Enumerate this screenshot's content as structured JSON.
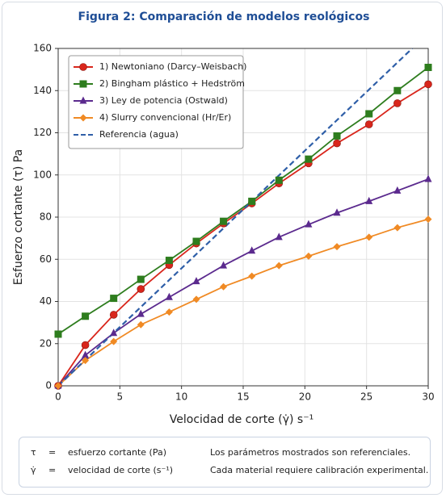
{
  "chart_data": {
    "type": "line",
    "title": "Figura 2: Comparación de modelos reológicos",
    "x_label": "Velocidad de corte (γ̇) s⁻¹",
    "y_label": "Esfuerzo cortante (τ) Pa",
    "x": [
      0,
      2.2,
      4.5,
      6.7,
      9.0,
      11.2,
      13.4,
      15.7,
      17.9,
      20.3,
      22.6,
      25.2,
      27.5,
      30.0
    ],
    "series": [
      {
        "name": "1) Newtoniano (Darcy–Weisbach)",
        "color": "#d9261c",
        "marker": "circle",
        "values": [
          0,
          19.3,
          33.7,
          45.9,
          57.3,
          67.5,
          77,
          86.5,
          96,
          105.5,
          115,
          124,
          134,
          143
        ]
      },
      {
        "name": "2) Bingham plástico + Hedström",
        "color": "#2e7d1e",
        "marker": "square",
        "values": [
          24.5,
          33,
          41.5,
          50.5,
          59.5,
          68.5,
          78,
          87.5,
          97.5,
          107.5,
          118.5,
          129,
          140,
          151
        ]
      },
      {
        "name": "3) Ley de potencia (Ostwald)",
        "color": "#5b2a8e",
        "marker": "triangle",
        "values": [
          0,
          14.5,
          25,
          34,
          42,
          49.5,
          57,
          64,
          70.5,
          76.5,
          82,
          87.5,
          92.5,
          98
        ]
      },
      {
        "name": "4) Slurry convencional (Hr/Er)",
        "color": "#f08a24",
        "marker": "diamond",
        "values": [
          0,
          12,
          21,
          29,
          35,
          41,
          47,
          52,
          57,
          61.5,
          66,
          70.5,
          75,
          79
        ]
      },
      {
        "name": "Referencia (agua)",
        "color": "#2f5fa8",
        "dashed": true,
        "x": [
          0,
          28.7
        ],
        "values": [
          0,
          160
        ]
      }
    ],
    "xlim": [
      0,
      30
    ],
    "ylim": [
      0,
      160
    ],
    "xticks": [
      0,
      5,
      10,
      15,
      20,
      25,
      30
    ],
    "yticks": [
      0,
      20,
      40,
      60,
      80,
      100,
      120,
      140,
      160
    ],
    "grid": true,
    "legend": "upper left"
  },
  "notes": {
    "definitions": [
      {
        "symbol": "τ",
        "sep": "=",
        "text": "esfuerzo cortante (Pa)"
      },
      {
        "symbol": "γ̇",
        "sep": "=",
        "text": "velocidad de corte (s⁻¹)"
      }
    ],
    "remarks": [
      "Los parámetros mostrados son referenciales.",
      "Cada material requiere calibración experimental."
    ]
  }
}
